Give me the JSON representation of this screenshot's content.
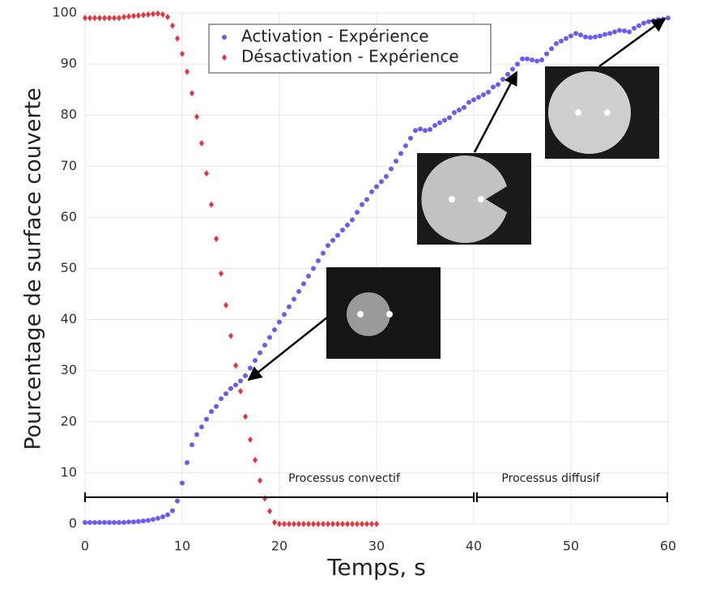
{
  "chart_data": {
    "type": "scatter",
    "xlabel": "Temps, s",
    "ylabel": "Pourcentage de surface couverte",
    "xlim": [
      0,
      60
    ],
    "ylim": [
      0,
      100
    ],
    "xticks": [
      0,
      10,
      20,
      30,
      40,
      50,
      60
    ],
    "yticks": [
      0,
      10,
      20,
      30,
      40,
      50,
      60,
      70,
      80,
      90,
      100
    ],
    "grid": true,
    "legend": "top",
    "annotations": [
      "Processus convectif",
      "Processus diffusif"
    ],
    "series": [
      {
        "name": "Activation - Expérience",
        "color": "#6a5cf0",
        "marker": "circle",
        "x": [
          0,
          0.5,
          1,
          1.5,
          2,
          2.5,
          3,
          3.5,
          4,
          4.5,
          5,
          5.5,
          6,
          6.5,
          7,
          7.5,
          8,
          8.5,
          9,
          9.5,
          10,
          10.5,
          11,
          11.5,
          12,
          12.5,
          13,
          13.5,
          14,
          14.5,
          15,
          15.5,
          16,
          16.5,
          17,
          17.5,
          18,
          18.5,
          19,
          19.5,
          20,
          20.5,
          21,
          21.5,
          22,
          22.5,
          23,
          23.5,
          24,
          24.5,
          25,
          25.5,
          26,
          26.5,
          27,
          27.5,
          28,
          28.5,
          29,
          29.5,
          30,
          30.5,
          31,
          31.5,
          32,
          32.5,
          33,
          33.5,
          34,
          34.5,
          35,
          35.5,
          36,
          36.5,
          37,
          37.5,
          38,
          38.5,
          39,
          39.5,
          40,
          40.5,
          41,
          41.5,
          42,
          42.5,
          43,
          43.5,
          44,
          44.5,
          45,
          45.5,
          46,
          46.5,
          47,
          47.5,
          48,
          48.5,
          49,
          49.5,
          50,
          50.5,
          51,
          51.5,
          52,
          52.5,
          53,
          53.5,
          54,
          54.5,
          55,
          55.5,
          56,
          56.5,
          57,
          57.5,
          58,
          58.5,
          59,
          59.5,
          60
        ],
        "values": [
          0.3,
          0.3,
          0.3,
          0.3,
          0.3,
          0.3,
          0.3,
          0.3,
          0.3,
          0.4,
          0.4,
          0.5,
          0.6,
          0.7,
          0.9,
          1.1,
          1.4,
          1.8,
          2.6,
          4.5,
          8,
          12,
          15.5,
          17.5,
          19,
          20.5,
          22,
          23,
          24.5,
          25.5,
          26.5,
          27.2,
          28,
          29,
          30.5,
          32,
          33.5,
          35,
          36.5,
          38,
          39.5,
          41,
          42.5,
          44,
          45.5,
          47,
          48.5,
          50,
          51.5,
          53,
          54.5,
          55.5,
          56.5,
          57.5,
          58.5,
          59.5,
          61,
          62.5,
          63.5,
          65,
          66,
          67,
          68,
          69.5,
          71,
          72.5,
          74,
          75.5,
          77,
          77.3,
          77,
          77.2,
          78,
          78.5,
          79,
          79.5,
          80.5,
          81,
          81.5,
          82.5,
          83,
          83.5,
          84,
          84.5,
          85.5,
          86,
          87,
          88,
          89,
          90,
          91,
          91,
          90.8,
          90.6,
          90.8,
          92,
          93,
          94,
          94.5,
          95,
          95.5,
          96,
          95.7,
          95.3,
          95.2,
          95.3,
          95.5,
          95.8,
          96,
          96.3,
          96.6,
          96.5,
          96.3,
          97,
          97.5,
          98,
          98.3,
          98.5,
          98.7,
          98.8,
          99
        ]
      },
      {
        "name": "Désactivation - Expérience",
        "color": "#e8323c",
        "marker": "diamond",
        "x": [
          0,
          0.5,
          1,
          1.5,
          2,
          2.5,
          3,
          3.5,
          4,
          4.5,
          5,
          5.5,
          6,
          6.5,
          7,
          7.5,
          8,
          8.5,
          9,
          9.5,
          10,
          10.5,
          11,
          11.5,
          12,
          12.5,
          13,
          13.5,
          14,
          14.5,
          15,
          15.5,
          16,
          16.5,
          17,
          17.5,
          18,
          18.5,
          19,
          19.5,
          20,
          20.5,
          21,
          21.5,
          22,
          22.5,
          23,
          23.5,
          24,
          24.5,
          25,
          25.5,
          26,
          26.5,
          27,
          27.5,
          28,
          28.5,
          29,
          29.5,
          30
        ],
        "values": [
          99,
          99,
          99,
          99,
          99,
          99,
          99,
          99,
          99.2,
          99.3,
          99.4,
          99.5,
          99.6,
          99.7,
          99.8,
          99.9,
          99.7,
          99.2,
          97.5,
          95,
          92,
          88.5,
          84.3,
          79.7,
          74.5,
          68.6,
          62.5,
          55.8,
          49,
          42.8,
          36.8,
          31,
          26,
          21,
          16.5,
          12.5,
          8.5,
          5,
          2.5,
          0.3,
          0,
          0,
          0,
          0,
          0,
          0,
          0,
          0,
          0,
          0,
          0,
          0,
          0,
          0,
          0,
          0,
          0,
          0,
          0,
          0,
          0
        ]
      }
    ]
  }
}
